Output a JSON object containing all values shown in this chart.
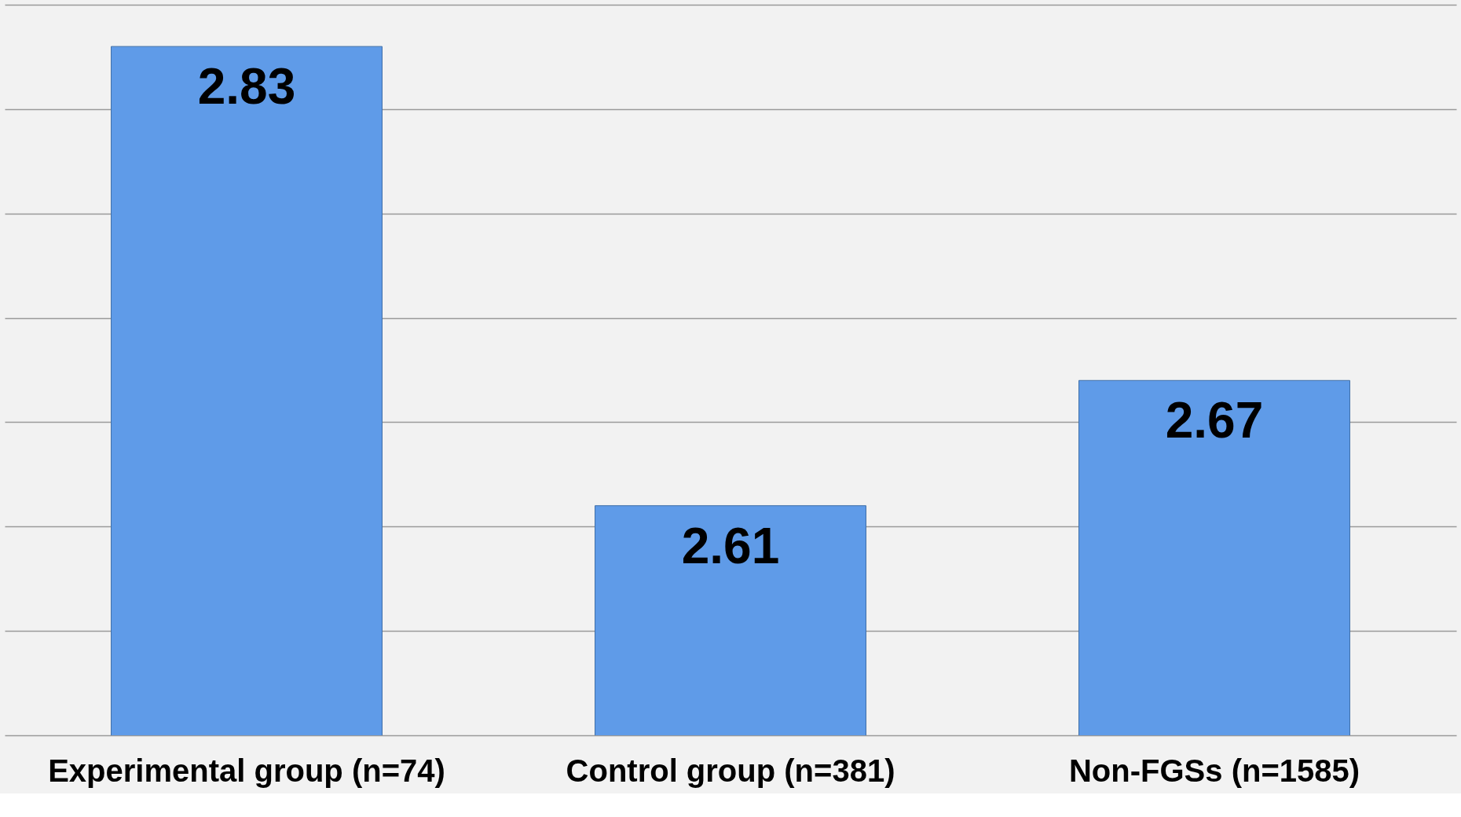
{
  "chart_data": {
    "type": "bar",
    "categories": [
      "Experimental group (n=74)",
      "Control group (n=381)",
      "Non-FGSs (n=1585)"
    ],
    "values": [
      2.83,
      2.61,
      2.67
    ],
    "color": "#5f9be8",
    "ylim": [
      2.5,
      2.85
    ],
    "yticks": [
      {
        "value": 2.5,
        "label": null
      },
      {
        "value": 2.55,
        "label": null
      },
      {
        "value": 2.6,
        "label": null
      },
      {
        "value": 2.65,
        "label": null
      },
      {
        "value": 2.7,
        "label": null
      },
      {
        "value": 2.75,
        "label": null
      },
      {
        "value": 2.8,
        "label": null
      },
      {
        "value": 2.85,
        "label": null
      }
    ],
    "tick_labels": "x",
    "grid": "y",
    "data_labels": true
  }
}
